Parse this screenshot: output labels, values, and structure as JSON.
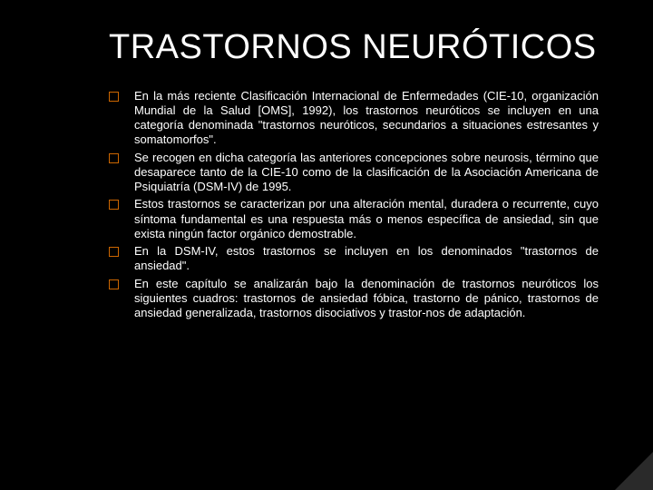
{
  "colors": {
    "background": "#000000",
    "title_color": "#ffffff",
    "body_color": "#ffffff",
    "bullet_border": "#cc6600",
    "corner_fold": "#2a2a2a"
  },
  "typography": {
    "title_fontsize": 38,
    "body_fontsize": 13,
    "font_family": "Arial"
  },
  "slide": {
    "title": "TRASTORNOS NEURÓTICOS",
    "bullets": [
      "En la más reciente Clasificación Internacional de Enfermedades (CIE-10, organización Mundial de la Salud [OMS], 1992), los trastornos neuróticos se incluyen en una categoría denominada \"trastornos neuróticos, secundarios a situaciones estresantes y somatomorfos\".",
      "Se recogen en dicha categoría las anteriores concepciones sobre neurosis, término que desaparece tanto de la CIE-10 como de la clasificación de la Asociación Americana de Psiquiatría (DSM-IV) de 1995.",
      "Estos trastornos se caracterizan por una alteración mental, duradera o recurrente, cuyo síntoma fundamental es una respuesta más o menos específica de ansiedad, sin que exista ningún factor orgánico demostrable.",
      "En la DSM-IV, estos trastornos se incluyen en los denominados \"trastornos de ansiedad\".",
      "En este capítulo se analizarán bajo la denominación de trastornos neuróticos los siguientes cuadros: trastornos de ansiedad fóbica, trastorno de pánico, trastornos de ansiedad generalizada, trastornos disociativos y trastor-nos de adaptación."
    ]
  }
}
